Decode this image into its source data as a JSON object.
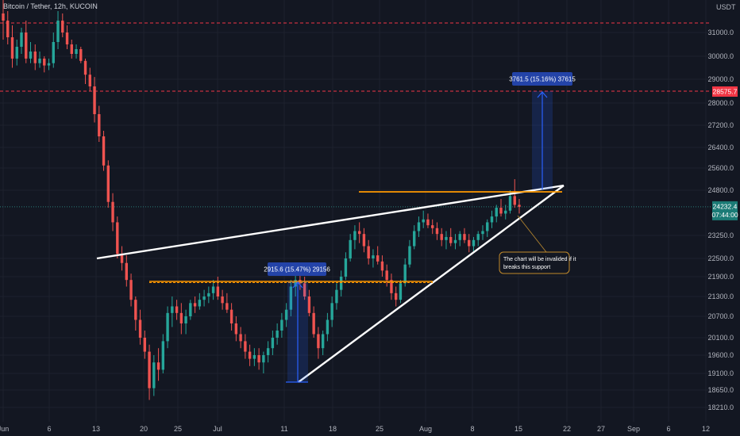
{
  "header": {
    "title": "Bitcoin / Tether, 12h, KUCOIN"
  },
  "colors": {
    "background": "#131722",
    "up": "#26a69a",
    "down": "#ef5350",
    "grid": "#1e222d",
    "trendline": "#ffffff",
    "orange": "#ff9800",
    "measure": "#2962ff",
    "red_level": "#f23645"
  },
  "chart_data": {
    "type": "candlestick",
    "currency": "USDT",
    "x_ticks": [
      "Jun",
      "6",
      "13",
      "20",
      "25",
      "Jul",
      "11",
      "18",
      "25",
      "Aug",
      "8",
      "15",
      "22",
      "27",
      "Sep",
      "6",
      "12"
    ],
    "y_ticks": [
      "31000.0",
      "30000.0",
      "29000.0",
      "28000.0",
      "27200.0",
      "26400.0",
      "25600.0",
      "24800.0",
      "23250.0",
      "22500.0",
      "21900.0",
      "21300.0",
      "20700.0",
      "20100.0",
      "19600.0",
      "19100.0",
      "18650.0",
      "18210.0"
    ],
    "price_labels": [
      {
        "value": "28575.7",
        "kind": "red_level"
      },
      {
        "value": "24232.4",
        "sub": "07:44:00",
        "kind": "last_price"
      }
    ],
    "measurements": [
      {
        "label": "2915.6 (15.47%) 29156"
      },
      {
        "label": "3761.5 (15.16%) 37615"
      }
    ],
    "annotation": "The chart will be invalided if it breaks this support",
    "candles": [
      [
        31800,
        32400,
        30700,
        31500
      ],
      [
        31500,
        31900,
        30500,
        30800
      ],
      [
        30800,
        31300,
        29500,
        29900
      ],
      [
        29900,
        30700,
        29600,
        30400
      ],
      [
        30400,
        31200,
        30100,
        31000
      ],
      [
        31000,
        31500,
        29700,
        29900
      ],
      [
        29900,
        30600,
        29700,
        30200
      ],
      [
        30200,
        30500,
        29400,
        29700
      ],
      [
        29700,
        30200,
        29500,
        29900
      ],
      [
        29900,
        30000,
        29300,
        29600
      ],
      [
        29600,
        29900,
        29400,
        29700
      ],
      [
        29700,
        31000,
        29500,
        30600
      ],
      [
        30600,
        31900,
        30300,
        31500
      ],
      [
        31500,
        31800,
        30800,
        31000
      ],
      [
        31000,
        31300,
        30300,
        30500
      ],
      [
        30500,
        30700,
        29900,
        30100
      ],
      [
        30100,
        30500,
        29900,
        30300
      ],
      [
        30300,
        30400,
        29700,
        29800
      ],
      [
        29800,
        29900,
        28800,
        29200
      ],
      [
        29200,
        29500,
        28500,
        28700
      ],
      [
        28700,
        29100,
        27300,
        27600
      ],
      [
        27600,
        27900,
        26600,
        26800
      ],
      [
        26800,
        27000,
        25500,
        25700
      ],
      [
        25700,
        25900,
        24200,
        24400
      ],
      [
        24400,
        24700,
        23400,
        23700
      ],
      [
        23700,
        23900,
        22500,
        22650
      ],
      [
        22650,
        22900,
        22100,
        22350
      ],
      [
        22350,
        22600,
        21600,
        21800
      ],
      [
        21800,
        22000,
        21000,
        21200
      ],
      [
        21200,
        21300,
        20300,
        20600
      ],
      [
        20600,
        20900,
        19900,
        20100
      ],
      [
        20100,
        20300,
        19500,
        19700
      ],
      [
        19700,
        19900,
        18400,
        18700
      ],
      [
        18700,
        19600,
        18500,
        19400
      ],
      [
        19400,
        19800,
        18900,
        19200
      ],
      [
        19200,
        20200,
        19100,
        20000
      ],
      [
        20000,
        21000,
        19800,
        20800
      ],
      [
        20800,
        21300,
        20400,
        21000
      ],
      [
        21000,
        21200,
        20600,
        20800
      ],
      [
        20800,
        21100,
        20200,
        20500
      ],
      [
        20500,
        20900,
        20200,
        20700
      ],
      [
        20700,
        21200,
        20600,
        21100
      ],
      [
        21100,
        21300,
        20800,
        21000
      ],
      [
        21000,
        21400,
        20900,
        21200
      ],
      [
        21200,
        21500,
        21000,
        21300
      ],
      [
        21300,
        21600,
        21100,
        21400
      ],
      [
        21400,
        21800,
        21200,
        21600
      ],
      [
        21600,
        21900,
        21200,
        21300
      ],
      [
        21300,
        21500,
        20900,
        21100
      ],
      [
        21100,
        21400,
        20800,
        20900
      ],
      [
        20900,
        21100,
        20300,
        20500
      ],
      [
        20500,
        20700,
        20000,
        20200
      ],
      [
        20200,
        20400,
        19800,
        20000
      ],
      [
        20000,
        20200,
        19500,
        19700
      ],
      [
        19700,
        19900,
        19300,
        19500
      ],
      [
        19500,
        19800,
        19300,
        19600
      ],
      [
        19600,
        19800,
        19200,
        19400
      ],
      [
        19400,
        19700,
        19100,
        19600
      ],
      [
        19600,
        20000,
        19400,
        19800
      ],
      [
        19800,
        20300,
        19600,
        20100
      ],
      [
        20100,
        20500,
        19900,
        20300
      ],
      [
        20300,
        20800,
        20100,
        20600
      ],
      [
        20600,
        21100,
        20400,
        20900
      ],
      [
        20900,
        21800,
        20700,
        21600
      ],
      [
        21600,
        22000,
        21300,
        21800
      ],
      [
        21800,
        22100,
        21500,
        21700
      ],
      [
        21700,
        21900,
        21200,
        21300
      ],
      [
        21300,
        21500,
        20700,
        20800
      ],
      [
        20800,
        21000,
        20100,
        20200
      ],
      [
        20200,
        20400,
        19500,
        19800
      ],
      [
        19800,
        20300,
        19600,
        20200
      ],
      [
        20200,
        20800,
        20000,
        20600
      ],
      [
        20600,
        21300,
        20400,
        21100
      ],
      [
        21100,
        21700,
        20900,
        21500
      ],
      [
        21500,
        22100,
        21300,
        21900
      ],
      [
        21900,
        22700,
        21800,
        22500
      ],
      [
        22500,
        23300,
        22400,
        23100
      ],
      [
        23100,
        23600,
        22800,
        23400
      ],
      [
        23400,
        23700,
        23000,
        23300
      ],
      [
        23300,
        23500,
        22700,
        22900
      ],
      [
        22900,
        23100,
        22300,
        22500
      ],
      [
        22500,
        22800,
        22200,
        22600
      ],
      [
        22600,
        22900,
        22300,
        22400
      ],
      [
        22400,
        22600,
        21900,
        22100
      ],
      [
        22100,
        22300,
        21600,
        21800
      ],
      [
        21800,
        22000,
        21200,
        21400
      ],
      [
        21400,
        21600,
        21000,
        21200
      ],
      [
        21200,
        21800,
        21100,
        21700
      ],
      [
        21700,
        22500,
        21600,
        22300
      ],
      [
        22300,
        23100,
        22200,
        22900
      ],
      [
        22900,
        23600,
        22800,
        23400
      ],
      [
        23400,
        23900,
        23200,
        23700
      ],
      [
        23700,
        24100,
        23500,
        23800
      ],
      [
        23800,
        24000,
        23500,
        23600
      ],
      [
        23600,
        23800,
        23300,
        23500
      ],
      [
        23500,
        23700,
        23100,
        23300
      ],
      [
        23300,
        23500,
        22900,
        23100
      ],
      [
        23100,
        23400,
        22800,
        23200
      ],
      [
        23200,
        23500,
        22900,
        23000
      ],
      [
        23000,
        23300,
        22800,
        23100
      ],
      [
        23100,
        23400,
        22900,
        23300
      ],
      [
        23300,
        23500,
        23000,
        23100
      ],
      [
        23100,
        23300,
        22700,
        22900
      ],
      [
        22900,
        23200,
        22700,
        23100
      ],
      [
        23100,
        23400,
        22900,
        23300
      ],
      [
        23300,
        23600,
        23100,
        23400
      ],
      [
        23400,
        23800,
        23200,
        23700
      ],
      [
        23700,
        24100,
        23500,
        23900
      ],
      [
        23900,
        24300,
        23700,
        24200
      ],
      [
        24200,
        24500,
        23900,
        24000
      ],
      [
        24000,
        24300,
        23800,
        24100
      ],
      [
        24100,
        24800,
        24000,
        24600
      ],
      [
        24600,
        25200,
        24200,
        24300
      ],
      [
        24300,
        24500,
        24000,
        24232
      ]
    ]
  }
}
